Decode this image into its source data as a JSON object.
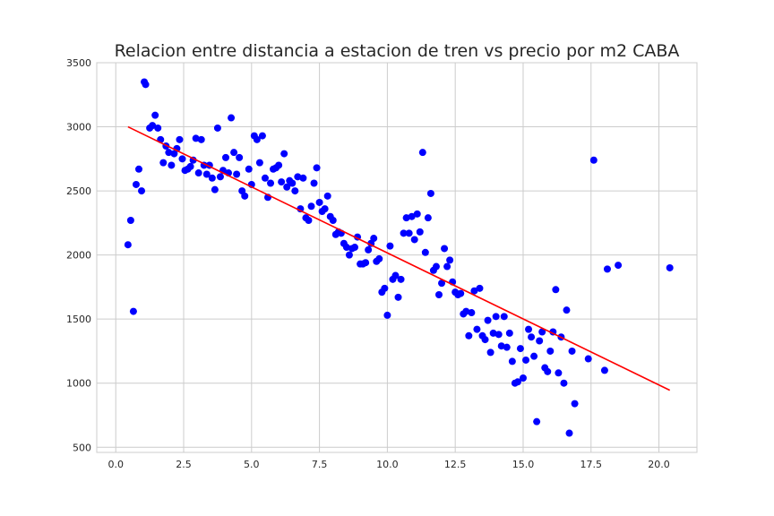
{
  "chart_data": {
    "type": "scatter",
    "title": "Relacion entre distancia a estacion de tren vs precio por m2 CABA",
    "xlabel": "",
    "ylabel": "",
    "xlim": [
      -0.7,
      21.4
    ],
    "ylim": [
      460,
      3500
    ],
    "xticks": [
      0.0,
      2.5,
      5.0,
      7.5,
      10.0,
      12.5,
      15.0,
      17.5,
      20.0
    ],
    "xtick_labels": [
      "0.0",
      "2.5",
      "5.0",
      "7.5",
      "10.0",
      "12.5",
      "15.0",
      "17.5",
      "20.0"
    ],
    "yticks": [
      500,
      1000,
      1500,
      2000,
      2500,
      3000,
      3500
    ],
    "ytick_labels": [
      "500",
      "1000",
      "1500",
      "2000",
      "2500",
      "3000",
      "3500"
    ],
    "grid": true,
    "point_color": "#0000ff",
    "line_color": "#ff0000",
    "series": [
      {
        "kind": "points",
        "x": [
          0.45,
          0.55,
          0.65,
          0.75,
          0.85,
          0.95,
          1.05,
          1.1,
          1.25,
          1.35,
          1.45,
          1.55,
          1.65,
          1.75,
          1.85,
          1.95,
          2.05,
          2.15,
          2.25,
          2.35,
          2.45,
          2.55,
          2.65,
          2.75,
          2.85,
          2.95,
          3.05,
          3.15,
          3.25,
          3.35,
          3.45,
          3.55,
          3.65,
          3.75,
          3.85,
          3.95,
          4.05,
          4.15,
          4.25,
          4.35,
          4.45,
          4.55,
          4.65,
          4.75,
          4.9,
          5.0,
          5.1,
          5.2,
          5.3,
          5.4,
          5.5,
          5.6,
          5.7,
          5.8,
          5.9,
          6.0,
          6.1,
          6.2,
          6.3,
          6.4,
          6.5,
          6.6,
          6.7,
          6.8,
          6.9,
          7.0,
          7.1,
          7.2,
          7.3,
          7.4,
          7.5,
          7.6,
          7.7,
          7.8,
          7.9,
          8.0,
          8.1,
          8.2,
          8.3,
          8.4,
          8.5,
          8.6,
          8.7,
          8.8,
          8.9,
          9.0,
          9.1,
          9.2,
          9.3,
          9.4,
          9.5,
          9.6,
          9.7,
          9.8,
          9.9,
          10.0,
          10.1,
          10.2,
          10.3,
          10.4,
          10.5,
          10.6,
          10.7,
          10.8,
          10.9,
          11.0,
          11.1,
          11.2,
          11.3,
          11.4,
          11.5,
          11.6,
          11.7,
          11.8,
          11.9,
          12.0,
          12.1,
          12.2,
          12.3,
          12.4,
          12.5,
          12.6,
          12.7,
          12.8,
          12.9,
          13.0,
          13.1,
          13.2,
          13.3,
          13.4,
          13.5,
          13.6,
          13.7,
          13.8,
          13.9,
          14.0,
          14.1,
          14.2,
          14.3,
          14.4,
          14.5,
          14.6,
          14.7,
          14.8,
          14.9,
          15.0,
          15.1,
          15.2,
          15.3,
          15.4,
          15.5,
          15.6,
          15.7,
          15.8,
          15.9,
          16.0,
          16.1,
          16.2,
          16.3,
          16.4,
          16.5,
          16.6,
          16.7,
          16.8,
          16.9,
          17.4,
          17.6,
          18.0,
          18.1,
          18.5,
          20.4
        ],
        "y": [
          2080,
          2270,
          1560,
          2550,
          2670,
          2500,
          3350,
          3330,
          2990,
          3010,
          3090,
          2990,
          2900,
          2720,
          2850,
          2800,
          2700,
          2790,
          2830,
          2900,
          2750,
          2660,
          2670,
          2690,
          2740,
          2910,
          2640,
          2900,
          2700,
          2630,
          2700,
          2600,
          2510,
          2990,
          2610,
          2660,
          2760,
          2640,
          3070,
          2800,
          2630,
          2760,
          2500,
          2460,
          2670,
          2550,
          2930,
          2900,
          2720,
          2930,
          2600,
          2450,
          2560,
          2670,
          2680,
          2700,
          2570,
          2790,
          2530,
          2580,
          2560,
          2500,
          2610,
          2360,
          2600,
          2290,
          2270,
          2380,
          2560,
          2680,
          2410,
          2340,
          2360,
          2460,
          2300,
          2270,
          2160,
          2180,
          2170,
          2090,
          2060,
          2000,
          2050,
          2060,
          2140,
          1930,
          1930,
          1940,
          2040,
          2090,
          2130,
          1950,
          1970,
          1710,
          1740,
          1530,
          2070,
          1810,
          1840,
          1670,
          1810,
          2170,
          2290,
          2170,
          2300,
          2120,
          2320,
          2180,
          2800,
          2020,
          2290,
          2480,
          1880,
          1910,
          1690,
          1780,
          2050,
          1910,
          1960,
          1790,
          1710,
          1690,
          1700,
          1540,
          1560,
          1370,
          1550,
          1720,
          1420,
          1740,
          1370,
          1340,
          1490,
          1240,
          1390,
          1520,
          1380,
          1290,
          1520,
          1280,
          1390,
          1170,
          1000,
          1010,
          1270,
          1040,
          1180,
          1420,
          1360,
          1210,
          700,
          1330,
          1400,
          1120,
          1090,
          1250,
          1400,
          1730,
          1080,
          1360,
          1000,
          1570,
          610,
          1250,
          840,
          1190,
          2740,
          1100,
          1890,
          1920,
          1900
        ]
      },
      {
        "kind": "line",
        "x": [
          0.45,
          20.4
        ],
        "y": [
          3000,
          945
        ]
      }
    ]
  }
}
